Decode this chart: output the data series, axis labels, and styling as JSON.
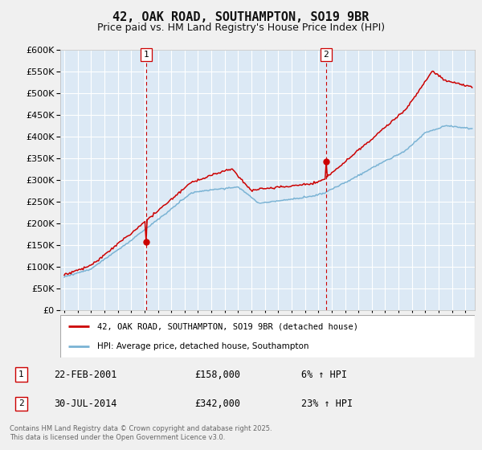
{
  "title": "42, OAK ROAD, SOUTHAMPTON, SO19 9BR",
  "subtitle": "Price paid vs. HM Land Registry's House Price Index (HPI)",
  "bg_color": "#dce9f5",
  "fig_bg": "#f0f0f0",
  "grid_color": "#ffffff",
  "ylim": [
    0,
    600000
  ],
  "yticks": [
    0,
    50000,
    100000,
    150000,
    200000,
    250000,
    300000,
    350000,
    400000,
    450000,
    500000,
    550000,
    600000
  ],
  "xlim_start": 1994.7,
  "xlim_end": 2025.7,
  "sale1_year": 2001.14,
  "sale1_price": 158000,
  "sale1_label": "1",
  "sale1_date": "22-FEB-2001",
  "sale1_amount": "£158,000",
  "sale1_pct": "6% ↑ HPI",
  "sale2_year": 2014.58,
  "sale2_price": 342000,
  "sale2_label": "2",
  "sale2_date": "30-JUL-2014",
  "sale2_amount": "£342,000",
  "sale2_pct": "23% ↑ HPI",
  "line1_color": "#cc0000",
  "line2_color": "#7ab3d4",
  "dashed_color": "#cc0000",
  "legend1": "42, OAK ROAD, SOUTHAMPTON, SO19 9BR (detached house)",
  "legend2": "HPI: Average price, detached house, Southampton",
  "footer": "Contains HM Land Registry data © Crown copyright and database right 2025.\nThis data is licensed under the Open Government Licence v3.0.",
  "title_fontsize": 11,
  "subtitle_fontsize": 9,
  "tick_fontsize": 7
}
